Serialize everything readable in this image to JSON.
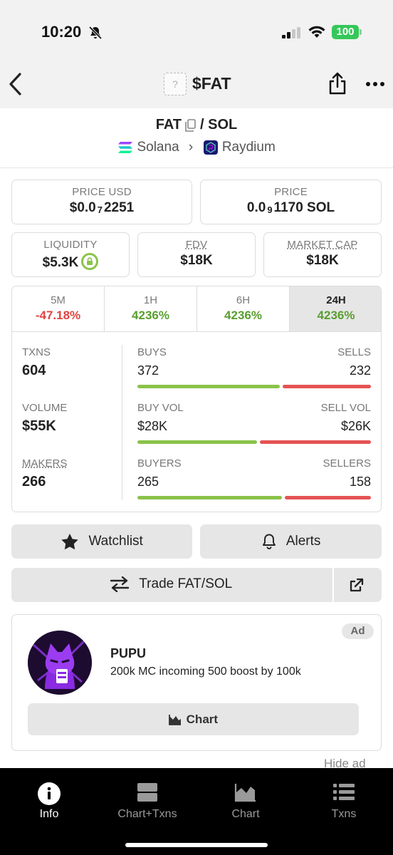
{
  "status_bar": {
    "time": "10:20",
    "battery": "100"
  },
  "header": {
    "token_icon": "?",
    "title": "$FAT"
  },
  "pair": {
    "base": "FAT",
    "separator": "/",
    "quote": "SOL",
    "chain": "Solana",
    "dex": "Raydium"
  },
  "price_boxes": {
    "usd": {
      "label": "PRICE USD",
      "prefix": "$0.0",
      "zeros": "7",
      "digits": "2251"
    },
    "native": {
      "label": "PRICE",
      "prefix": "0.0",
      "zeros": "9",
      "digits": "1170 SOL"
    }
  },
  "metrics": {
    "liquidity": {
      "label": "LIQUIDITY",
      "value": "$5.3K"
    },
    "fdv": {
      "label": "FDV",
      "value": "$18K"
    },
    "market_cap": {
      "label": "MARKET CAP",
      "value": "$18K"
    }
  },
  "timeframes": [
    {
      "label": "5M",
      "change": "-47.18%"
    },
    {
      "label": "1H",
      "change": "4236%"
    },
    {
      "label": "6H",
      "change": "4236%"
    },
    {
      "label": "24H",
      "change": "4236%"
    }
  ],
  "stats": {
    "txns": {
      "label": "TXNS",
      "value": "604"
    },
    "volume": {
      "label": "VOLUME",
      "value": "$55K"
    },
    "makers": {
      "label": "MAKERS",
      "value": "266"
    },
    "buys_sells": {
      "left_label": "BUYS",
      "right_label": "SELLS",
      "left": "372",
      "right": "232",
      "left_share": 0.616
    },
    "vol_split": {
      "left_label": "BUY VOL",
      "right_label": "SELL VOL",
      "left": "$28K",
      "right": "$26K",
      "left_share": 0.518
    },
    "buyers_sellers": {
      "left_label": "BUYERS",
      "right_label": "SELLERS",
      "left": "265",
      "right": "158",
      "left_share": 0.626
    }
  },
  "actions": {
    "watchlist": "Watchlist",
    "alerts": "Alerts",
    "trade": "Trade FAT/SOL"
  },
  "ad": {
    "tag": "Ad",
    "name": "PUPU",
    "description": "200k MC incoming 500 boost by 100k",
    "button": "Chart",
    "hide": "Hide ad"
  },
  "bottom_nav": [
    {
      "label": "Info",
      "icon": "info-icon"
    },
    {
      "label": "Chart+Txns",
      "icon": "chart-txns-icon"
    },
    {
      "label": "Chart",
      "icon": "chart-icon"
    },
    {
      "label": "Txns",
      "icon": "list-icon"
    }
  ],
  "colors": {
    "positive": "#5a9e2f",
    "negative": "#e04343",
    "buy_bar": "#8bc34a",
    "sell_bar": "#e55353",
    "battery": "#35c759"
  }
}
